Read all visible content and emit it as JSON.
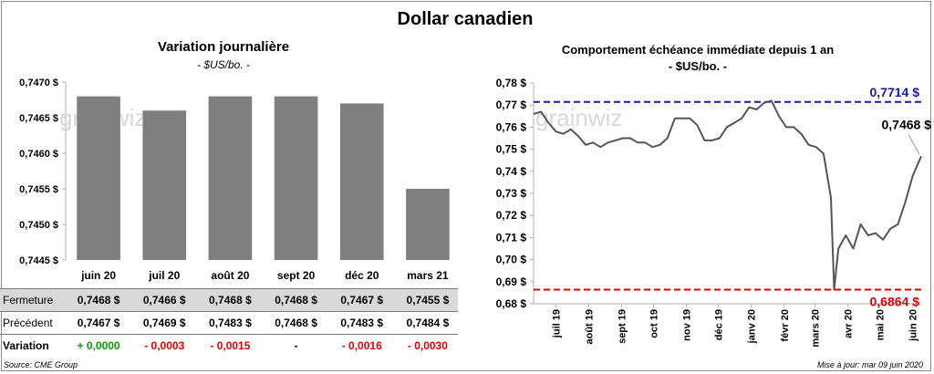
{
  "title": "Dollar canadien",
  "footer": {
    "source": "Source: CME Group",
    "update": "Mise à jour: mar 09 juin 2020"
  },
  "watermark": "grainwiz",
  "table": {
    "rows": [
      {
        "label": "Fermeture",
        "values": [
          "0,7468 $",
          "0,7466 $",
          "0,7468 $",
          "0,7468 $",
          "0,7467 $",
          "0,7455 $"
        ]
      },
      {
        "label": "Précédent",
        "values": [
          "0,7467 $",
          "0,7469 $",
          "0,7483 $",
          "0,7468 $",
          "0,7483 $",
          "0,7484 $"
        ]
      },
      {
        "label": "Variation",
        "values": [
          "+ 0,0000",
          "- 0,0003",
          "- 0,0015",
          "-",
          "- 0,0016",
          "- 0,0030"
        ],
        "tones": [
          "pos",
          "neg",
          "neg",
          "neu",
          "neg",
          "neg"
        ]
      }
    ]
  },
  "chart_data": [
    {
      "type": "bar",
      "title": "Variation  journalière",
      "subtitle": "- $US/bo. -",
      "categories": [
        "juin 20",
        "juil 20",
        "août 20",
        "sept 20",
        "déc 20",
        "mars 21"
      ],
      "values": [
        0.7468,
        0.7466,
        0.7468,
        0.7468,
        0.7467,
        0.7455
      ],
      "ylim": [
        0.7445,
        0.747
      ],
      "yticks": [
        "0,7445 $",
        "0,7450 $",
        "0,7455 $",
        "0,7460 $",
        "0,7465 $",
        "0,7470 $"
      ],
      "bar_color": "#7f7f7f"
    },
    {
      "type": "line",
      "title": "Comportement échéance immédiate depuis 1 an",
      "subtitle": "- $US/bo. -",
      "ylim": [
        0.68,
        0.78
      ],
      "yticks": [
        "0,68 $",
        "0,69 $",
        "0,70 $",
        "0,71 $",
        "0,72 $",
        "0,73 $",
        "0,74 $",
        "0,75 $",
        "0,76 $",
        "0,77 $",
        "0,78 $"
      ],
      "xticks": [
        "juil 19",
        "août 19",
        "sept 19",
        "oct 19",
        "nov 19",
        "déc 19",
        "janv 20",
        "févr 20",
        "mars 20",
        "avr 20",
        "mai 20",
        "juin 20"
      ],
      "xrange": [
        "2019-06-10",
        "2020-06-09"
      ],
      "x": [
        "2019-06-10",
        "2019-06-17",
        "2019-06-24",
        "2019-07-01",
        "2019-07-08",
        "2019-07-15",
        "2019-07-22",
        "2019-07-29",
        "2019-08-05",
        "2019-08-12",
        "2019-08-19",
        "2019-08-26",
        "2019-09-02",
        "2019-09-09",
        "2019-09-16",
        "2019-09-23",
        "2019-09-30",
        "2019-10-07",
        "2019-10-14",
        "2019-10-21",
        "2019-10-28",
        "2019-11-04",
        "2019-11-11",
        "2019-11-18",
        "2019-11-25",
        "2019-12-02",
        "2019-12-09",
        "2019-12-16",
        "2019-12-23",
        "2019-12-30",
        "2020-01-06",
        "2020-01-13",
        "2020-01-20",
        "2020-01-27",
        "2020-02-03",
        "2020-02-10",
        "2020-02-17",
        "2020-02-24",
        "2020-03-02",
        "2020-03-09",
        "2020-03-16",
        "2020-03-19",
        "2020-03-23",
        "2020-03-30",
        "2020-04-06",
        "2020-04-13",
        "2020-04-20",
        "2020-04-27",
        "2020-05-04",
        "2020-05-11",
        "2020-05-18",
        "2020-05-25",
        "2020-06-01",
        "2020-06-09"
      ],
      "y": [
        0.766,
        0.767,
        0.762,
        0.758,
        0.757,
        0.759,
        0.756,
        0.752,
        0.753,
        0.751,
        0.753,
        0.754,
        0.755,
        0.755,
        0.753,
        0.753,
        0.751,
        0.752,
        0.755,
        0.764,
        0.764,
        0.764,
        0.761,
        0.754,
        0.754,
        0.755,
        0.76,
        0.762,
        0.764,
        0.769,
        0.768,
        0.771,
        0.772,
        0.765,
        0.76,
        0.76,
        0.757,
        0.752,
        0.751,
        0.748,
        0.728,
        0.6864,
        0.705,
        0.711,
        0.705,
        0.716,
        0.711,
        0.712,
        0.709,
        0.714,
        0.716,
        0.726,
        0.738,
        0.7468
      ],
      "series_name": "",
      "line_color": "#555555",
      "annotations": {
        "last_label": "0,7468 $",
        "high": {
          "value": 0.7714,
          "label": "0,7714 $",
          "color": "#1a1aa6"
        },
        "low": {
          "value": 0.6864,
          "label": "0,6864 $",
          "color": "#e00000"
        }
      }
    }
  ]
}
